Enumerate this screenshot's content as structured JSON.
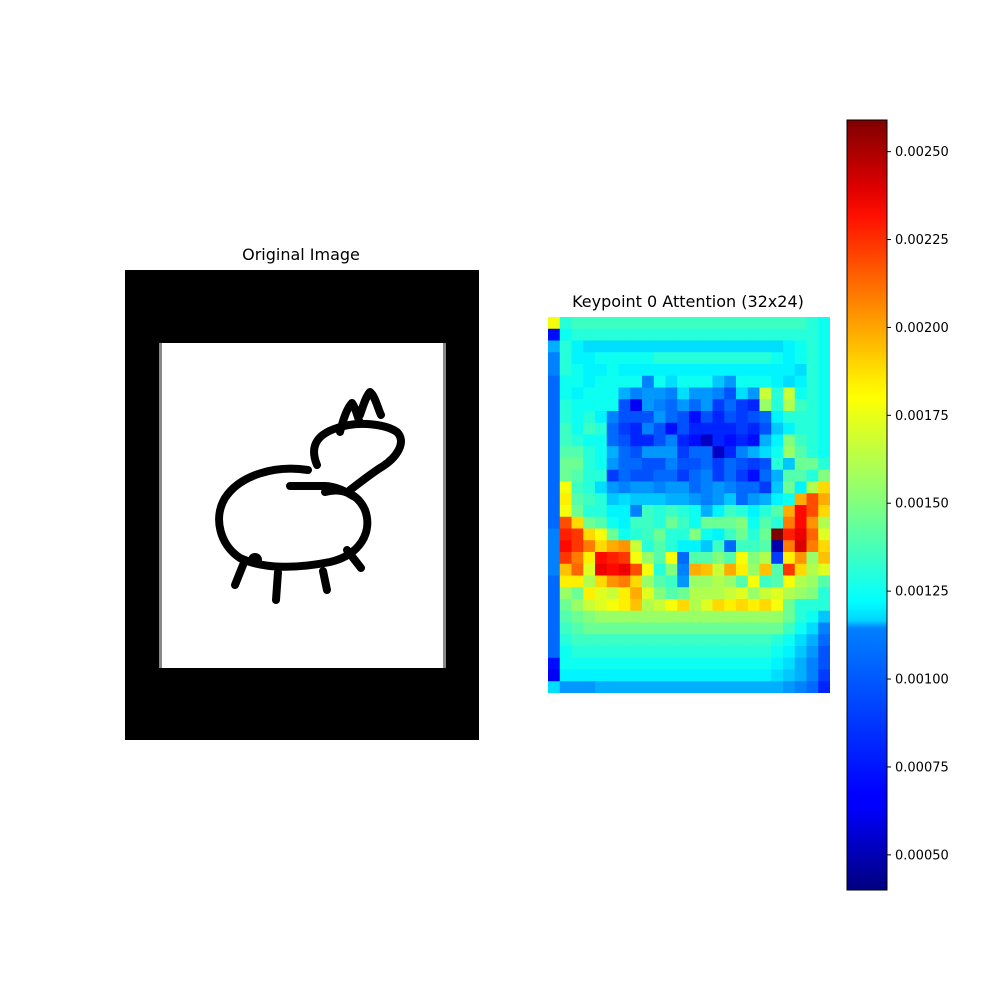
{
  "chart_data": [
    {
      "type": "image",
      "title": "Original Image",
      "content": "line drawing of a four-legged animal on a white card framed by black borders"
    },
    {
      "type": "heatmap",
      "title": "Keypoint 0 Attention (32x24)",
      "rows": 32,
      "cols": 24,
      "colormap": "jet",
      "axes": "off",
      "values": [
        [
          1.75,
          1.3,
          1.35,
          1.35,
          1.35,
          1.35,
          1.35,
          1.35,
          1.35,
          1.35,
          1.35,
          1.35,
          1.35,
          1.35,
          1.35,
          1.35,
          1.35,
          1.35,
          1.35,
          1.35,
          1.35,
          1.35,
          1.3,
          1.25
        ],
        [
          0.7,
          1.25,
          1.3,
          1.3,
          1.3,
          1.3,
          1.3,
          1.3,
          1.3,
          1.3,
          1.3,
          1.3,
          1.3,
          1.3,
          1.3,
          1.3,
          1.3,
          1.3,
          1.3,
          1.3,
          1.3,
          1.3,
          1.3,
          1.25
        ],
        [
          1.05,
          1.3,
          1.2,
          1.15,
          1.15,
          1.15,
          1.15,
          1.15,
          1.15,
          1.15,
          1.15,
          1.15,
          1.15,
          1.15,
          1.15,
          1.15,
          1.15,
          1.15,
          1.15,
          1.15,
          1.2,
          1.25,
          1.3,
          1.25
        ],
        [
          0.95,
          1.3,
          1.2,
          1.2,
          1.25,
          1.25,
          1.25,
          1.25,
          1.25,
          1.3,
          1.3,
          1.3,
          1.3,
          1.3,
          1.3,
          1.3,
          1.3,
          1.3,
          1.3,
          1.25,
          1.2,
          1.25,
          1.3,
          1.25
        ],
        [
          0.95,
          1.3,
          1.25,
          1.2,
          1.2,
          1.25,
          1.2,
          1.2,
          1.2,
          1.2,
          1.2,
          1.2,
          1.2,
          1.2,
          1.2,
          1.2,
          1.2,
          1.2,
          1.2,
          1.2,
          1.2,
          1.15,
          1.3,
          1.25
        ],
        [
          0.9,
          1.25,
          1.25,
          1.2,
          1.25,
          1.25,
          1.25,
          1.25,
          0.95,
          1.25,
          1.15,
          1.25,
          1.25,
          1.25,
          1.1,
          1.0,
          1.25,
          1.25,
          1.25,
          1.2,
          1.15,
          1.2,
          1.3,
          1.25
        ],
        [
          0.9,
          1.25,
          1.2,
          1.25,
          1.25,
          1.25,
          1.05,
          0.95,
          1.0,
          1.0,
          0.95,
          1.15,
          1.0,
          1.0,
          0.95,
          0.85,
          1.15,
          1.0,
          1.65,
          1.3,
          1.65,
          1.25,
          1.3,
          1.25
        ],
        [
          0.9,
          1.3,
          1.25,
          1.25,
          1.25,
          1.25,
          0.85,
          0.65,
          1.0,
          0.95,
          0.9,
          1.0,
          0.9,
          1.0,
          0.8,
          0.9,
          0.8,
          0.75,
          1.55,
          1.3,
          1.6,
          1.35,
          1.3,
          1.25
        ],
        [
          0.9,
          1.3,
          1.25,
          1.3,
          1.2,
          0.95,
          0.85,
          0.85,
          0.85,
          1.0,
          0.9,
          0.85,
          0.7,
          0.85,
          0.75,
          0.85,
          0.8,
          0.85,
          0.9,
          1.2,
          1.3,
          1.3,
          1.3,
          1.25
        ],
        [
          0.9,
          1.35,
          1.25,
          1.35,
          1.3,
          0.9,
          0.8,
          0.75,
          0.95,
          0.85,
          0.7,
          0.85,
          0.75,
          0.75,
          0.75,
          0.75,
          0.8,
          0.75,
          0.85,
          1.1,
          1.2,
          1.3,
          1.3,
          1.25
        ],
        [
          0.9,
          1.35,
          1.3,
          1.25,
          1.25,
          0.9,
          0.85,
          0.75,
          0.75,
          0.85,
          0.95,
          0.75,
          0.7,
          0.55,
          0.75,
          0.7,
          0.75,
          0.7,
          1.05,
          1.2,
          1.5,
          1.35,
          1.3,
          1.25
        ],
        [
          0.9,
          1.4,
          1.4,
          1.3,
          1.25,
          1.05,
          0.9,
          0.85,
          1.0,
          1.0,
          1.0,
          0.8,
          0.9,
          0.9,
          0.55,
          0.75,
          0.95,
          1.05,
          1.15,
          1.25,
          1.55,
          1.4,
          1.3,
          1.25
        ],
        [
          0.9,
          1.45,
          1.45,
          1.3,
          1.25,
          1.0,
          0.9,
          0.9,
          0.85,
          0.85,
          0.95,
          0.85,
          0.85,
          0.9,
          0.8,
          0.9,
          0.85,
          0.8,
          0.85,
          1.3,
          1.1,
          1.45,
          1.45,
          1.3
        ],
        [
          0.9,
          1.45,
          1.4,
          1.3,
          1.3,
          0.8,
          0.9,
          0.85,
          0.85,
          0.9,
          0.9,
          0.8,
          0.9,
          0.95,
          0.8,
          0.9,
          0.8,
          0.7,
          0.9,
          1.05,
          1.4,
          1.4,
          1.3,
          1.5
        ],
        [
          0.9,
          1.75,
          1.35,
          1.3,
          1.15,
          1.0,
          0.95,
          1.0,
          1.0,
          0.95,
          1.0,
          1.0,
          0.9,
          0.95,
          1.0,
          0.95,
          0.9,
          0.9,
          0.8,
          1.1,
          1.45,
          1.2,
          1.6,
          1.85
        ],
        [
          0.9,
          1.8,
          1.4,
          1.35,
          1.3,
          1.1,
          1.15,
          1.1,
          1.1,
          1.1,
          1.05,
          1.05,
          1.0,
          0.95,
          1.0,
          1.1,
          0.9,
          1.0,
          1.05,
          1.2,
          1.25,
          1.95,
          2.15,
          1.95
        ],
        [
          0.9,
          1.75,
          1.45,
          1.3,
          1.3,
          1.2,
          1.2,
          0.95,
          1.35,
          1.3,
          1.35,
          1.3,
          1.25,
          1.05,
          1.2,
          1.35,
          1.3,
          1.2,
          1.3,
          1.4,
          1.95,
          2.3,
          2.15,
          1.85
        ],
        [
          0.9,
          2.15,
          1.85,
          1.45,
          1.4,
          1.25,
          1.2,
          1.35,
          1.35,
          1.3,
          1.45,
          1.35,
          1.25,
          1.45,
          1.45,
          1.45,
          1.5,
          1.25,
          1.4,
          1.3,
          2.05,
          2.3,
          2.0,
          1.6
        ],
        [
          0.95,
          2.25,
          2.2,
          1.85,
          1.75,
          1.45,
          1.25,
          1.3,
          1.35,
          1.45,
          1.3,
          1.3,
          1.5,
          1.25,
          1.2,
          1.35,
          1.45,
          1.3,
          1.45,
          2.6,
          2.25,
          2.35,
          2.1,
          1.7
        ],
        [
          0.95,
          2.3,
          2.2,
          2.05,
          1.85,
          1.95,
          2.0,
          1.65,
          1.3,
          1.4,
          1.3,
          1.2,
          1.2,
          1.1,
          1.35,
          0.9,
          1.35,
          1.35,
          1.4,
          0.5,
          2.05,
          2.4,
          2.05,
          1.85
        ],
        [
          0.95,
          2.2,
          2.05,
          1.8,
          2.3,
          2.25,
          2.2,
          1.75,
          1.55,
          1.4,
          1.75,
          0.9,
          1.4,
          1.4,
          1.5,
          1.4,
          1.75,
          1.5,
          1.6,
          0.8,
          1.8,
          2.0,
          1.55,
          1.9
        ],
        [
          0.95,
          1.9,
          2.1,
          1.7,
          2.35,
          2.3,
          2.35,
          2.15,
          1.75,
          1.3,
          1.5,
          0.95,
          1.95,
          1.9,
          1.65,
          1.95,
          1.8,
          1.55,
          1.9,
          1.4,
          2.2,
          1.85,
          1.6,
          1.7
        ],
        [
          0.9,
          1.8,
          1.8,
          1.6,
          1.85,
          2.0,
          2.05,
          1.85,
          1.55,
          1.4,
          1.35,
          1.0,
          1.55,
          1.55,
          1.6,
          1.55,
          1.4,
          1.75,
          1.35,
          1.4,
          1.75,
          1.6,
          1.55,
          1.4
        ],
        [
          0.9,
          1.55,
          1.45,
          1.8,
          1.7,
          1.65,
          1.8,
          1.95,
          1.7,
          1.5,
          1.4,
          1.45,
          1.6,
          1.6,
          1.6,
          1.65,
          1.7,
          1.55,
          1.65,
          1.7,
          1.6,
          1.55,
          1.5,
          1.3
        ],
        [
          0.9,
          1.45,
          1.55,
          1.65,
          1.7,
          1.75,
          1.8,
          1.9,
          1.6,
          1.65,
          1.75,
          1.85,
          1.6,
          1.7,
          1.85,
          1.8,
          1.85,
          1.8,
          1.85,
          1.75,
          1.45,
          1.3,
          1.3,
          1.3
        ],
        [
          0.9,
          1.4,
          1.45,
          1.5,
          1.55,
          1.55,
          1.55,
          1.55,
          1.55,
          1.55,
          1.55,
          1.55,
          1.55,
          1.55,
          1.55,
          1.55,
          1.55,
          1.55,
          1.55,
          1.55,
          1.45,
          1.3,
          1.25,
          1.1
        ],
        [
          0.9,
          1.35,
          1.4,
          1.45,
          1.45,
          1.45,
          1.45,
          1.45,
          1.45,
          1.45,
          1.45,
          1.45,
          1.45,
          1.45,
          1.45,
          1.45,
          1.45,
          1.45,
          1.45,
          1.45,
          1.35,
          1.25,
          1.15,
          0.95
        ],
        [
          0.9,
          1.3,
          1.35,
          1.35,
          1.35,
          1.35,
          1.35,
          1.35,
          1.35,
          1.35,
          1.35,
          1.35,
          1.35,
          1.35,
          1.35,
          1.35,
          1.35,
          1.35,
          1.35,
          1.3,
          1.25,
          1.15,
          1.05,
          0.9
        ],
        [
          0.9,
          1.25,
          1.3,
          1.3,
          1.3,
          1.3,
          1.3,
          1.3,
          1.3,
          1.3,
          1.3,
          1.3,
          1.3,
          1.3,
          1.3,
          1.3,
          1.3,
          1.3,
          1.3,
          1.25,
          1.2,
          1.1,
          1.0,
          0.85
        ],
        [
          0.7,
          1.25,
          1.25,
          1.25,
          1.25,
          1.25,
          1.25,
          1.25,
          1.25,
          1.25,
          1.25,
          1.25,
          1.25,
          1.25,
          1.25,
          1.25,
          1.25,
          1.25,
          1.25,
          1.2,
          1.15,
          1.05,
          0.95,
          0.85
        ],
        [
          0.65,
          1.2,
          1.2,
          1.2,
          1.2,
          1.2,
          1.2,
          1.2,
          1.2,
          1.2,
          1.2,
          1.2,
          1.2,
          1.2,
          1.2,
          1.2,
          1.2,
          1.2,
          1.2,
          1.15,
          1.1,
          1.05,
          0.95,
          0.8
        ],
        [
          1.15,
          1.0,
          1.0,
          1.0,
          1.05,
          1.05,
          1.05,
          1.05,
          1.05,
          1.05,
          1.05,
          1.05,
          1.05,
          1.05,
          1.05,
          1.05,
          1.05,
          1.05,
          1.05,
          1.05,
          1.0,
          0.95,
          0.9,
          0.75
        ]
      ],
      "value_scale": 0.001
    },
    {
      "type": "colorbar",
      "colormap": "jet",
      "vmin": 0.0004,
      "vmax": 0.00259,
      "ticks": [
        0.0005,
        0.00075,
        0.001,
        0.00125,
        0.0015,
        0.00175,
        0.002,
        0.00225,
        0.0025
      ],
      "tick_labels": [
        "0.00050",
        "0.00075",
        "0.00100",
        "0.00125",
        "0.00150",
        "0.00175",
        "0.00200",
        "0.00225",
        "0.00250"
      ]
    }
  ]
}
